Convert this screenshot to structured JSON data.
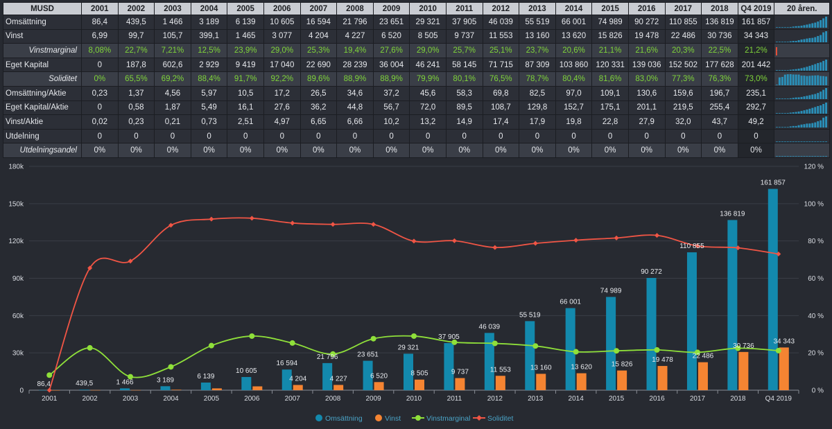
{
  "table": {
    "header_label": "MUSD",
    "spark_header": "20 åren.",
    "years": [
      "2001",
      "2002",
      "2003",
      "2004",
      "2005",
      "2006",
      "2007",
      "2008",
      "2009",
      "2010",
      "2011",
      "2012",
      "2013",
      "2014",
      "2015",
      "2016",
      "2017",
      "2018",
      "Q4 2019"
    ],
    "rows": [
      {
        "label": "Omsättning",
        "style": "norm",
        "italic": false,
        "green": false,
        "values": [
          "86,4",
          "439,5",
          "1 466",
          "3 189",
          "6 139",
          "10 605",
          "16 594",
          "21 796",
          "23 651",
          "29 321",
          "37 905",
          "46 039",
          "55 519",
          "66 001",
          "74 989",
          "90 272",
          "110 855",
          "136 819",
          "161 857"
        ],
        "spark": [
          86.4,
          439.5,
          1466,
          3189,
          6139,
          10605,
          16594,
          21796,
          23651,
          29321,
          37905,
          46039,
          55519,
          66001,
          74989,
          90272,
          110855,
          136819,
          161857
        ]
      },
      {
        "label": "Vinst",
        "style": "norm",
        "italic": false,
        "green": false,
        "values": [
          "6,99",
          "99,7",
          "105,7",
          "399,1",
          "1 465",
          "3 077",
          "4 204",
          "4 227",
          "6 520",
          "8 505",
          "9 737",
          "11 553",
          "13 160",
          "13 620",
          "15 826",
          "19 478",
          "22 486",
          "30 736",
          "34 343"
        ],
        "spark": [
          6.99,
          99.7,
          105.7,
          399.1,
          1465,
          3077,
          4204,
          4227,
          6520,
          8505,
          9737,
          11553,
          13160,
          13620,
          15826,
          19478,
          22486,
          30736,
          34343
        ]
      },
      {
        "label": "Vinstmarginal",
        "style": "alt",
        "italic": true,
        "green": true,
        "values": [
          "8,08%",
          "22,7%",
          "7,21%",
          "12,5%",
          "23,9%",
          "29,0%",
          "25,3%",
          "19,4%",
          "27,6%",
          "29,0%",
          "25,7%",
          "25,1%",
          "23,7%",
          "20,6%",
          "21,1%",
          "21,6%",
          "20,3%",
          "22,5%",
          "21,2%"
        ],
        "spark": [],
        "marker_color": "#e8503a"
      },
      {
        "label": "Eget Kapital",
        "style": "norm",
        "italic": false,
        "green": false,
        "values": [
          "0",
          "187,8",
          "602,6",
          "2 929",
          "9 419",
          "17 040",
          "22 690",
          "28 239",
          "36 004",
          "46 241",
          "58 145",
          "71 715",
          "87 309",
          "103 860",
          "120 331",
          "139 036",
          "152 502",
          "177 628",
          "201 442"
        ],
        "spark": [
          0,
          187.8,
          602.6,
          2929,
          9419,
          17040,
          22690,
          28239,
          36004,
          46241,
          58145,
          71715,
          87309,
          103860,
          120331,
          139036,
          152502,
          177628,
          201442
        ]
      },
      {
        "label": "Soliditet",
        "style": "alt",
        "italic": true,
        "green": true,
        "values": [
          "0%",
          "65,5%",
          "69,2%",
          "88,4%",
          "91,7%",
          "92,2%",
          "89,6%",
          "88,9%",
          "88,9%",
          "79,9%",
          "80,1%",
          "76,5%",
          "78,7%",
          "80,4%",
          "81,6%",
          "83,0%",
          "77,3%",
          "76,3%",
          "73,0%"
        ],
        "spark": [
          0,
          65.5,
          69.2,
          88.4,
          91.7,
          92.2,
          89.6,
          88.9,
          88.9,
          79.9,
          80.1,
          76.5,
          78.7,
          80.4,
          81.6,
          83.0,
          77.3,
          76.3,
          73.0
        ]
      },
      {
        "label": "Omsättning/Aktie",
        "style": "norm",
        "italic": false,
        "green": false,
        "values": [
          "0,23",
          "1,37",
          "4,56",
          "5,97",
          "10,5",
          "17,2",
          "26,5",
          "34,6",
          "37,2",
          "45,6",
          "58,3",
          "69,8",
          "82,5",
          "97,0",
          "109,1",
          "130,6",
          "159,6",
          "196,7",
          "235,1"
        ],
        "spark": [
          0.23,
          1.37,
          4.56,
          5.97,
          10.5,
          17.2,
          26.5,
          34.6,
          37.2,
          45.6,
          58.3,
          69.8,
          82.5,
          97.0,
          109.1,
          130.6,
          159.6,
          196.7,
          235.1
        ]
      },
      {
        "label": "Eget Kapital/Aktie",
        "style": "norm",
        "italic": false,
        "green": false,
        "values": [
          "0",
          "0,58",
          "1,87",
          "5,49",
          "16,1",
          "27,6",
          "36,2",
          "44,8",
          "56,7",
          "72,0",
          "89,5",
          "108,7",
          "129,8",
          "152,7",
          "175,1",
          "201,1",
          "219,5",
          "255,4",
          "292,7"
        ],
        "spark": [
          0,
          0.58,
          1.87,
          5.49,
          16.1,
          27.6,
          36.2,
          44.8,
          56.7,
          72.0,
          89.5,
          108.7,
          129.8,
          152.7,
          175.1,
          201.1,
          219.5,
          255.4,
          292.7
        ]
      },
      {
        "label": "Vinst/Aktie",
        "style": "norm",
        "italic": false,
        "green": false,
        "values": [
          "0,02",
          "0,23",
          "0,21",
          "0,73",
          "2,51",
          "4,97",
          "6,65",
          "6,66",
          "10,2",
          "13,2",
          "14,9",
          "17,4",
          "17,9",
          "19,8",
          "22,8",
          "27,9",
          "32,0",
          "43,7",
          "49,2"
        ],
        "spark": [
          0.02,
          0.23,
          0.21,
          0.73,
          2.51,
          4.97,
          6.65,
          6.66,
          10.2,
          13.2,
          14.9,
          17.4,
          17.9,
          19.8,
          22.8,
          27.9,
          32.0,
          43.7,
          49.2
        ]
      },
      {
        "label": "Utdelning",
        "style": "norm",
        "italic": false,
        "green": false,
        "values": [
          "0",
          "0",
          "0",
          "0",
          "0",
          "0",
          "0",
          "0",
          "0",
          "0",
          "0",
          "0",
          "0",
          "0",
          "0",
          "0",
          "0",
          "0",
          "0"
        ],
        "spark": [
          0,
          0,
          0,
          0,
          0,
          0,
          0,
          0,
          0,
          0,
          0,
          0,
          0,
          0,
          0,
          0,
          0,
          0,
          0
        ]
      },
      {
        "label": "Utdelningsandel",
        "style": "alt",
        "italic": true,
        "green": false,
        "values": [
          "0%",
          "0%",
          "0%",
          "0%",
          "0%",
          "0%",
          "0%",
          "0%",
          "0%",
          "0%",
          "0%",
          "0%",
          "0%",
          "0%",
          "0%",
          "0%",
          "0%",
          "0%",
          "0%"
        ],
        "spark": [
          0,
          0,
          0,
          0,
          0,
          0,
          0,
          0,
          0,
          0,
          0,
          0,
          0,
          0,
          0,
          0,
          0,
          0,
          0
        ]
      }
    ]
  },
  "colors": {
    "omsattning": "#1389ad",
    "vinst": "#f58432",
    "vinstmarginal": "#8fe03a",
    "soliditet": "#f05545",
    "spark": "#2a8fb8",
    "grid": "#3a3e47"
  },
  "chart_data": {
    "type": "bar",
    "categories": [
      "2001",
      "2002",
      "2003",
      "2004",
      "2005",
      "2006",
      "2007",
      "2008",
      "2009",
      "2010",
      "2011",
      "2012",
      "2013",
      "2014",
      "2015",
      "2016",
      "2017",
      "2018",
      "Q4 2019"
    ],
    "y_left": {
      "ticks": [
        0,
        30000,
        60000,
        90000,
        120000,
        150000,
        180000
      ],
      "tick_labels": [
        "0",
        "30k",
        "60k",
        "90k",
        "120k",
        "150k",
        "180k"
      ],
      "range": [
        0,
        180000
      ]
    },
    "y_right": {
      "ticks": [
        0,
        20,
        40,
        60,
        80,
        100,
        120
      ],
      "tick_labels": [
        "0 %",
        "20 %",
        "40 %",
        "60 %",
        "80 %",
        "100 %",
        "120 %"
      ],
      "range": [
        0,
        120
      ]
    },
    "grid": true,
    "legend_position": "bottom",
    "series": [
      {
        "name": "Omsättning",
        "kind": "bar",
        "axis": "left",
        "values": [
          86.4,
          439.5,
          1466,
          3189,
          6139,
          10605,
          16594,
          21796,
          23651,
          29321,
          37905,
          46039,
          55519,
          66001,
          74989,
          90272,
          110855,
          136819,
          161857
        ],
        "labels": [
          "86,4",
          "439,5",
          "1 466",
          "3 189",
          "6 139",
          "10 605",
          "16 594",
          "21 796",
          "23 651",
          "29 321",
          "37 905",
          "46 039",
          "55 519",
          "66 001",
          "74 989",
          "90 272",
          "110 855",
          "136 819",
          "161 857"
        ]
      },
      {
        "name": "Vinst",
        "kind": "bar",
        "axis": "left",
        "values": [
          6.99,
          99.7,
          105.7,
          399.1,
          1465,
          3077,
          4204,
          4227,
          6520,
          8505,
          9737,
          11553,
          13160,
          13620,
          15826,
          19478,
          22486,
          30736,
          34343
        ],
        "labels": [
          "",
          "",
          "",
          "",
          "",
          "",
          "4 204",
          "4 227",
          "6 520",
          "8 505",
          "9 737",
          "11 553",
          "13 160",
          "13 620",
          "15 826",
          "19 478",
          "22 486",
          "30 736",
          "34 343"
        ]
      },
      {
        "name": "Vinstmarginal",
        "kind": "line",
        "axis": "right",
        "values": [
          8.08,
          22.7,
          7.21,
          12.5,
          23.9,
          29.0,
          25.3,
          19.4,
          27.6,
          29.0,
          25.7,
          25.1,
          23.7,
          20.6,
          21.1,
          21.6,
          20.3,
          22.5,
          21.2
        ]
      },
      {
        "name": "Soliditet",
        "kind": "line",
        "axis": "right",
        "values": [
          0,
          65.5,
          69.2,
          88.4,
          91.7,
          92.2,
          89.6,
          88.9,
          88.9,
          79.9,
          80.1,
          76.5,
          78.7,
          80.4,
          81.6,
          83.0,
          77.3,
          76.3,
          73.0
        ]
      }
    ]
  }
}
